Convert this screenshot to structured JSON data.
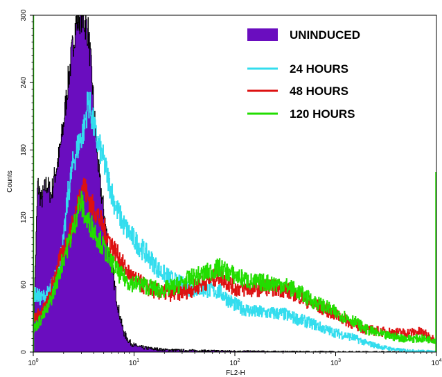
{
  "chart_data": {
    "type": "area",
    "xlabel": "FL2-H",
    "ylabel": "Counts",
    "x_scale": "log",
    "xlim": [
      1,
      10000
    ],
    "ylim": [
      0,
      300
    ],
    "x_ticks": [
      {
        "value": 1,
        "base": "10",
        "exp": "0"
      },
      {
        "value": 10,
        "base": "10",
        "exp": "1"
      },
      {
        "value": 100,
        "base": "10",
        "exp": "2"
      },
      {
        "value": 1000,
        "base": "10",
        "exp": "3"
      },
      {
        "value": 10000,
        "base": "10",
        "exp": "4"
      }
    ],
    "y_ticks": [
      "0",
      "60",
      "120",
      "180",
      "240",
      "300"
    ],
    "legend_position": "top-right",
    "series": [
      {
        "name": "UNINDUCED",
        "style": "filled",
        "color": "#6a0dbf",
        "points": [
          [
            1,
            10
          ],
          [
            1.1,
            150
          ],
          [
            1.2,
            135
          ],
          [
            1.35,
            150
          ],
          [
            1.5,
            140
          ],
          [
            1.65,
            160
          ],
          [
            1.8,
            175
          ],
          [
            2,
            205
          ],
          [
            2.2,
            240
          ],
          [
            2.4,
            265
          ],
          [
            2.6,
            290
          ],
          [
            2.8,
            298
          ],
          [
            3,
            300
          ],
          [
            3.2,
            295
          ],
          [
            3.5,
            285
          ],
          [
            3.8,
            245
          ],
          [
            4.1,
            200
          ],
          [
            4.5,
            155
          ],
          [
            5,
            125
          ],
          [
            5.5,
            95
          ],
          [
            6,
            75
          ],
          [
            6.5,
            55
          ],
          [
            7,
            38
          ],
          [
            7.5,
            25
          ],
          [
            8,
            16
          ],
          [
            9,
            9
          ],
          [
            10,
            6
          ],
          [
            12,
            4
          ],
          [
            15,
            3
          ],
          [
            20,
            2
          ],
          [
            30,
            1.5
          ],
          [
            60,
            1
          ],
          [
            100,
            0.8
          ],
          [
            300,
            0.4
          ],
          [
            1000,
            0.2
          ],
          [
            10000,
            0
          ]
        ]
      },
      {
        "name": "24 HOURS",
        "style": "line",
        "color": "#33ddee",
        "points": [
          [
            1,
            52
          ],
          [
            1.2,
            48
          ],
          [
            1.4,
            52
          ],
          [
            1.6,
            62
          ],
          [
            1.8,
            78
          ],
          [
            2,
            100
          ],
          [
            2.2,
            140
          ],
          [
            2.5,
            170
          ],
          [
            2.8,
            185
          ],
          [
            3.2,
            200
          ],
          [
            3.5,
            225
          ],
          [
            3.8,
            210
          ],
          [
            4.2,
            190
          ],
          [
            4.8,
            175
          ],
          [
            5.5,
            155
          ],
          [
            6.5,
            130
          ],
          [
            8,
            112
          ],
          [
            10,
            100
          ],
          [
            13,
            88
          ],
          [
            18,
            72
          ],
          [
            25,
            63
          ],
          [
            35,
            57
          ],
          [
            50,
            56
          ],
          [
            70,
            54
          ],
          [
            90,
            45
          ],
          [
            110,
            40
          ],
          [
            150,
            36
          ],
          [
            200,
            35
          ],
          [
            300,
            34
          ],
          [
            400,
            30
          ],
          [
            600,
            25
          ],
          [
            800,
            20
          ],
          [
            1000,
            17
          ],
          [
            1500,
            13
          ],
          [
            2000,
            8
          ],
          [
            3000,
            4
          ],
          [
            4000,
            2
          ],
          [
            6000,
            1
          ],
          [
            10000,
            0.5
          ]
        ]
      },
      {
        "name": "48 HOURS",
        "style": "line",
        "color": "#dd1111",
        "points": [
          [
            1,
            30
          ],
          [
            1.2,
            35
          ],
          [
            1.4,
            45
          ],
          [
            1.6,
            65
          ],
          [
            1.8,
            80
          ],
          [
            2,
            90
          ],
          [
            2.2,
            100
          ],
          [
            2.5,
            115
          ],
          [
            2.8,
            135
          ],
          [
            3.1,
            150
          ],
          [
            3.4,
            140
          ],
          [
            3.8,
            130
          ],
          [
            4.2,
            125
          ],
          [
            5,
            110
          ],
          [
            6,
            95
          ],
          [
            7,
            85
          ],
          [
            8,
            75
          ],
          [
            10,
            65
          ],
          [
            13,
            58
          ],
          [
            18,
            53
          ],
          [
            25,
            52
          ],
          [
            35,
            55
          ],
          [
            50,
            62
          ],
          [
            70,
            68
          ],
          [
            100,
            57
          ],
          [
            150,
            56
          ],
          [
            200,
            58
          ],
          [
            300,
            56
          ],
          [
            400,
            52
          ],
          [
            600,
            42
          ],
          [
            800,
            38
          ],
          [
            1000,
            33
          ],
          [
            1500,
            25
          ],
          [
            2000,
            20
          ],
          [
            3000,
            18
          ],
          [
            5000,
            17
          ],
          [
            7000,
            18
          ],
          [
            10000,
            10
          ]
        ]
      },
      {
        "name": "120 HOURS",
        "style": "line",
        "color": "#22dd00",
        "points": [
          [
            1,
            20
          ],
          [
            1.2,
            30
          ],
          [
            1.4,
            40
          ],
          [
            1.6,
            55
          ],
          [
            1.8,
            70
          ],
          [
            2,
            85
          ],
          [
            2.2,
            95
          ],
          [
            2.5,
            110
          ],
          [
            2.8,
            130
          ],
          [
            3,
            133
          ],
          [
            3.3,
            118
          ],
          [
            3.8,
            112
          ],
          [
            4.5,
            100
          ],
          [
            5.5,
            85
          ],
          [
            7,
            70
          ],
          [
            9,
            62
          ],
          [
            12,
            60
          ],
          [
            18,
            55
          ],
          [
            25,
            58
          ],
          [
            35,
            65
          ],
          [
            50,
            70
          ],
          [
            70,
            75
          ],
          [
            100,
            68
          ],
          [
            150,
            62
          ],
          [
            200,
            62
          ],
          [
            300,
            60
          ],
          [
            400,
            55
          ],
          [
            600,
            45
          ],
          [
            800,
            40
          ],
          [
            1000,
            35
          ],
          [
            1500,
            28
          ],
          [
            2000,
            20
          ],
          [
            3000,
            15
          ],
          [
            5000,
            12
          ],
          [
            7000,
            12
          ],
          [
            10000,
            11
          ]
        ]
      }
    ]
  }
}
